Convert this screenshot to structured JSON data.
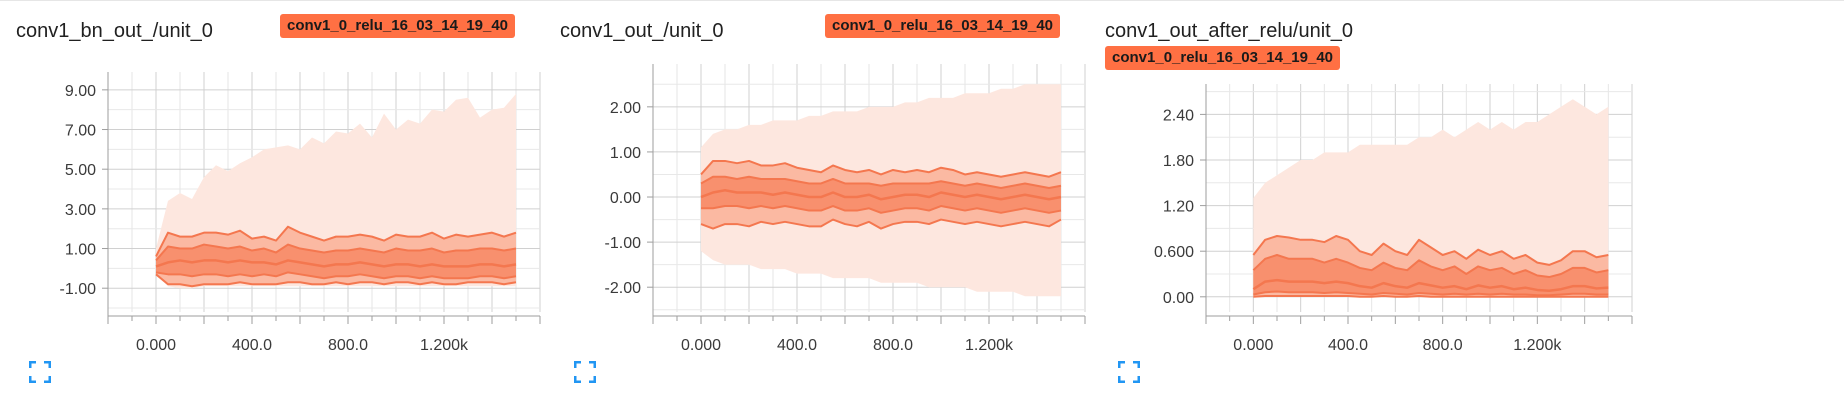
{
  "colors": {
    "accent": "#ff7043",
    "band_outer": "#fde7df",
    "band_mid": "#fbb9a2",
    "band_inner": "#f8906e",
    "line": "#f4774f",
    "grid": "#cfcfcf",
    "axis": "#9e9e9e",
    "expand_icon": "#2196f3"
  },
  "run_tag": "conv1_0_relu_16_03_14_19_40",
  "chart_data": [
    {
      "type": "area",
      "title": "conv1_bn_out_/unit_0",
      "tag": "conv1_0_relu_16_03_14_19_40",
      "x_ticks": [
        "0.000",
        "400.0",
        "800.0",
        "1.200k"
      ],
      "x_tick_values": [
        0,
        400,
        800,
        1200
      ],
      "y_ticks": [
        "9.00",
        "7.00",
        "5.00",
        "3.00",
        "1.00",
        "-1.00"
      ],
      "y_tick_values": [
        9,
        7,
        5,
        3,
        1,
        -1
      ],
      "xlim": [
        -200,
        1600
      ],
      "ylim": [
        -2.2,
        9.9
      ],
      "x": [
        0,
        50,
        100,
        150,
        200,
        250,
        300,
        350,
        400,
        450,
        500,
        550,
        600,
        650,
        700,
        750,
        800,
        850,
        900,
        950,
        1000,
        1050,
        1100,
        1150,
        1200,
        1250,
        1300,
        1350,
        1400,
        1450,
        1500
      ],
      "max": [
        1.0,
        3.4,
        3.8,
        3.5,
        4.6,
        5.2,
        4.9,
        5.3,
        5.6,
        6.0,
        6.1,
        6.2,
        6.0,
        6.6,
        6.3,
        6.9,
        6.8,
        7.3,
        6.6,
        7.8,
        7.0,
        7.5,
        7.3,
        8.0,
        7.9,
        8.5,
        8.6,
        7.6,
        8.0,
        8.1,
        8.8
      ],
      "q84": [
        0.6,
        1.8,
        1.6,
        1.6,
        1.8,
        1.8,
        1.7,
        1.9,
        1.5,
        1.6,
        1.4,
        2.1,
        1.8,
        1.6,
        1.4,
        1.6,
        1.6,
        1.7,
        1.6,
        1.4,
        1.7,
        1.6,
        1.6,
        1.8,
        1.5,
        1.7,
        1.6,
        1.7,
        1.8,
        1.6,
        1.8
      ],
      "q69": [
        0.4,
        1.1,
        1.0,
        1.0,
        1.2,
        1.1,
        1.0,
        1.1,
        0.9,
        1.0,
        0.8,
        1.2,
        1.0,
        0.9,
        0.8,
        0.9,
        0.9,
        1.0,
        0.9,
        0.8,
        1.0,
        0.9,
        0.9,
        1.0,
        0.8,
        0.9,
        0.9,
        1.0,
        1.0,
        0.9,
        1.0
      ],
      "median": [
        0.1,
        0.3,
        0.4,
        0.3,
        0.4,
        0.4,
        0.3,
        0.4,
        0.3,
        0.3,
        0.2,
        0.4,
        0.3,
        0.2,
        0.1,
        0.2,
        0.2,
        0.3,
        0.2,
        0.1,
        0.2,
        0.2,
        0.1,
        0.2,
        0.1,
        0.1,
        0.1,
        0.2,
        0.2,
        0.1,
        0.2
      ],
      "q31": [
        -0.2,
        -0.3,
        -0.3,
        -0.4,
        -0.3,
        -0.3,
        -0.4,
        -0.3,
        -0.4,
        -0.3,
        -0.4,
        -0.2,
        -0.3,
        -0.4,
        -0.5,
        -0.4,
        -0.4,
        -0.3,
        -0.4,
        -0.5,
        -0.4,
        -0.4,
        -0.5,
        -0.4,
        -0.5,
        -0.5,
        -0.5,
        -0.4,
        -0.4,
        -0.5,
        -0.4
      ],
      "q16": [
        -0.3,
        -0.8,
        -0.8,
        -0.9,
        -0.8,
        -0.8,
        -0.8,
        -0.7,
        -0.8,
        -0.8,
        -0.8,
        -0.7,
        -0.7,
        -0.8,
        -0.8,
        -0.7,
        -0.8,
        -0.7,
        -0.7,
        -0.8,
        -0.7,
        -0.7,
        -0.8,
        -0.7,
        -0.8,
        -0.8,
        -0.7,
        -0.7,
        -0.7,
        -0.8,
        -0.7
      ],
      "min": [
        -0.3,
        -0.9,
        -1.0,
        -1.0,
        -0.9,
        -0.9,
        -0.9,
        -0.9,
        -0.9,
        -0.9,
        -0.9,
        -0.9,
        -0.9,
        -0.9,
        -0.9,
        -0.9,
        -0.9,
        -0.9,
        -0.9,
        -0.9,
        -0.9,
        -0.9,
        -0.9,
        -0.9,
        -0.9,
        -0.9,
        -0.9,
        -0.9,
        -0.9,
        -0.9,
        -0.9
      ],
      "grid": true
    },
    {
      "type": "area",
      "title": "conv1_out_/unit_0",
      "tag": "conv1_0_relu_16_03_14_19_40",
      "x_ticks": [
        "0.000",
        "400.0",
        "800.0",
        "1.200k"
      ],
      "x_tick_values": [
        0,
        400,
        800,
        1200
      ],
      "y_ticks": [
        "2.00",
        "1.00",
        "0.00",
        "-1.00",
        "-2.00"
      ],
      "y_tick_values": [
        2,
        1,
        0,
        -1,
        -2
      ],
      "xlim": [
        -200,
        1600
      ],
      "ylim": [
        -2.55,
        2.95
      ],
      "x": [
        0,
        50,
        100,
        150,
        200,
        250,
        300,
        350,
        400,
        450,
        500,
        550,
        600,
        650,
        700,
        750,
        800,
        850,
        900,
        950,
        1000,
        1050,
        1100,
        1150,
        1200,
        1250,
        1300,
        1350,
        1400,
        1450,
        1500
      ],
      "max": [
        1.1,
        1.4,
        1.5,
        1.5,
        1.6,
        1.6,
        1.7,
        1.7,
        1.7,
        1.8,
        1.8,
        1.9,
        1.9,
        1.9,
        2.0,
        2.0,
        2.0,
        2.1,
        2.1,
        2.2,
        2.2,
        2.2,
        2.3,
        2.3,
        2.3,
        2.4,
        2.4,
        2.5,
        2.5,
        2.5,
        2.5
      ],
      "q84": [
        0.5,
        0.8,
        0.8,
        0.75,
        0.8,
        0.7,
        0.7,
        0.75,
        0.65,
        0.6,
        0.55,
        0.7,
        0.6,
        0.55,
        0.6,
        0.5,
        0.6,
        0.55,
        0.6,
        0.55,
        0.65,
        0.6,
        0.5,
        0.55,
        0.5,
        0.45,
        0.5,
        0.55,
        0.5,
        0.45,
        0.55
      ],
      "q69": [
        0.3,
        0.45,
        0.45,
        0.4,
        0.45,
        0.4,
        0.4,
        0.4,
        0.35,
        0.3,
        0.3,
        0.4,
        0.3,
        0.3,
        0.3,
        0.25,
        0.3,
        0.3,
        0.3,
        0.3,
        0.35,
        0.3,
        0.25,
        0.3,
        0.25,
        0.2,
        0.25,
        0.3,
        0.25,
        0.2,
        0.25
      ],
      "median": [
        0.0,
        0.1,
        0.15,
        0.1,
        0.1,
        0.1,
        0.05,
        0.1,
        0.05,
        0.0,
        0.0,
        0.1,
        0.0,
        0.0,
        0.05,
        -0.05,
        0.0,
        0.05,
        0.05,
        0.0,
        0.1,
        0.05,
        0.0,
        0.05,
        0.0,
        -0.05,
        0.0,
        0.05,
        0.0,
        -0.05,
        0.0
      ],
      "q31": [
        -0.25,
        -0.25,
        -0.2,
        -0.2,
        -0.25,
        -0.2,
        -0.25,
        -0.2,
        -0.25,
        -0.3,
        -0.3,
        -0.2,
        -0.3,
        -0.3,
        -0.25,
        -0.35,
        -0.3,
        -0.25,
        -0.25,
        -0.3,
        -0.2,
        -0.25,
        -0.3,
        -0.25,
        -0.3,
        -0.35,
        -0.3,
        -0.25,
        -0.3,
        -0.35,
        -0.3
      ],
      "q16": [
        -0.6,
        -0.7,
        -0.6,
        -0.6,
        -0.65,
        -0.55,
        -0.6,
        -0.55,
        -0.6,
        -0.65,
        -0.65,
        -0.5,
        -0.6,
        -0.65,
        -0.55,
        -0.7,
        -0.6,
        -0.55,
        -0.55,
        -0.6,
        -0.5,
        -0.55,
        -0.6,
        -0.55,
        -0.6,
        -0.65,
        -0.6,
        -0.55,
        -0.6,
        -0.65,
        -0.5
      ],
      "min": [
        -1.2,
        -1.4,
        -1.5,
        -1.5,
        -1.5,
        -1.6,
        -1.6,
        -1.6,
        -1.7,
        -1.7,
        -1.7,
        -1.8,
        -1.8,
        -1.8,
        -1.8,
        -1.9,
        -1.9,
        -1.9,
        -1.9,
        -2.0,
        -2.0,
        -2.0,
        -2.0,
        -2.1,
        -2.1,
        -2.1,
        -2.1,
        -2.2,
        -2.2,
        -2.2,
        -2.2
      ],
      "grid": true
    },
    {
      "type": "area",
      "title": "conv1_out_after_relu/unit_0",
      "tag": "conv1_0_relu_16_03_14_19_40",
      "x_ticks": [
        "0.000",
        "400.0",
        "800.0",
        "1.200k"
      ],
      "x_tick_values": [
        0,
        400,
        800,
        1200
      ],
      "y_ticks": [
        "2.40",
        "1.80",
        "1.20",
        "0.600",
        "0.00"
      ],
      "y_tick_values": [
        2.4,
        1.8,
        1.2,
        0.6,
        0.0
      ],
      "xlim": [
        -200,
        1600
      ],
      "ylim": [
        -0.2,
        2.8
      ],
      "x": [
        0,
        50,
        100,
        150,
        200,
        250,
        300,
        350,
        400,
        450,
        500,
        550,
        600,
        650,
        700,
        750,
        800,
        850,
        900,
        950,
        1000,
        1050,
        1100,
        1150,
        1200,
        1250,
        1300,
        1350,
        1400,
        1450,
        1500
      ],
      "max": [
        1.3,
        1.5,
        1.6,
        1.7,
        1.8,
        1.8,
        1.9,
        1.9,
        1.9,
        2.0,
        2.0,
        2.0,
        2.0,
        2.0,
        2.1,
        2.1,
        2.2,
        2.1,
        2.2,
        2.3,
        2.2,
        2.3,
        2.2,
        2.3,
        2.3,
        2.4,
        2.5,
        2.6,
        2.5,
        2.4,
        2.5
      ],
      "q84": [
        0.55,
        0.75,
        0.8,
        0.78,
        0.75,
        0.75,
        0.72,
        0.8,
        0.75,
        0.6,
        0.55,
        0.7,
        0.6,
        0.55,
        0.75,
        0.65,
        0.55,
        0.6,
        0.5,
        0.62,
        0.55,
        0.6,
        0.5,
        0.55,
        0.45,
        0.42,
        0.48,
        0.6,
        0.6,
        0.52,
        0.55
      ],
      "q69": [
        0.35,
        0.5,
        0.55,
        0.5,
        0.5,
        0.5,
        0.45,
        0.5,
        0.45,
        0.38,
        0.35,
        0.45,
        0.38,
        0.35,
        0.48,
        0.4,
        0.35,
        0.4,
        0.3,
        0.4,
        0.35,
        0.38,
        0.3,
        0.35,
        0.28,
        0.26,
        0.3,
        0.38,
        0.38,
        0.32,
        0.35
      ],
      "median": [
        0.1,
        0.2,
        0.22,
        0.2,
        0.2,
        0.2,
        0.18,
        0.2,
        0.18,
        0.14,
        0.12,
        0.18,
        0.14,
        0.12,
        0.18,
        0.15,
        0.12,
        0.14,
        0.1,
        0.15,
        0.12,
        0.14,
        0.1,
        0.12,
        0.09,
        0.08,
        0.1,
        0.14,
        0.14,
        0.11,
        0.12
      ],
      "q31": [
        0.03,
        0.06,
        0.07,
        0.06,
        0.06,
        0.06,
        0.05,
        0.06,
        0.05,
        0.04,
        0.03,
        0.05,
        0.04,
        0.03,
        0.05,
        0.04,
        0.03,
        0.04,
        0.03,
        0.04,
        0.03,
        0.04,
        0.03,
        0.03,
        0.02,
        0.02,
        0.03,
        0.04,
        0.04,
        0.03,
        0.03
      ],
      "q16": [
        0.0,
        0.01,
        0.01,
        0.01,
        0.01,
        0.01,
        0.01,
        0.01,
        0.01,
        0.0,
        0.0,
        0.01,
        0.0,
        0.0,
        0.01,
        0.0,
        0.0,
        0.0,
        0.0,
        0.0,
        0.0,
        0.0,
        0.0,
        0.0,
        0.0,
        0.0,
        0.0,
        0.0,
        0.0,
        0.0,
        0.0
      ],
      "min": [
        0.0,
        0.0,
        0.0,
        0.0,
        0.0,
        0.0,
        0.0,
        0.0,
        0.0,
        0.0,
        0.0,
        0.0,
        0.0,
        0.0,
        0.0,
        0.0,
        0.0,
        0.0,
        0.0,
        0.0,
        0.0,
        0.0,
        0.0,
        0.0,
        0.0,
        0.0,
        0.0,
        0.0,
        0.0,
        0.0,
        0.0
      ],
      "grid": true
    }
  ]
}
